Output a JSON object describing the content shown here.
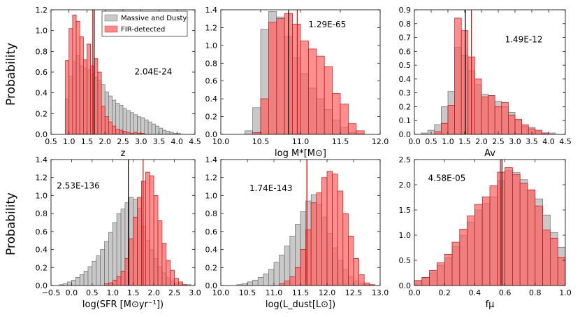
{
  "figure": {
    "ylabel": "Probability",
    "legend": [
      {
        "label": "Massive and Dusty",
        "color": "#c8c8c8"
      },
      {
        "label": "FIR-detected",
        "color": "#ff8a8a"
      }
    ]
  },
  "chart_data": [
    {
      "type": "histogram",
      "xlabel": "z",
      "pvalue": "2.04E-24",
      "xlim": [
        0.5,
        4.5
      ],
      "ylim": [
        0,
        1.2
      ],
      "xticks": [
        "0.5",
        "1.0",
        "1.5",
        "2.0",
        "2.5",
        "3.0",
        "3.5",
        "4.0",
        "4.5"
      ],
      "yticks": [
        "0.0",
        "0.2",
        "0.4",
        "0.6",
        "0.8",
        "1.0",
        "1.2"
      ],
      "bin_start": 0.9,
      "bin_width": 0.1,
      "series": [
        {
          "name": "Massive and Dusty",
          "values": [
            0.34,
            0.56,
            0.7,
            0.76,
            0.66,
            0.64,
            0.62,
            0.58,
            0.55,
            0.52,
            0.48,
            0.41,
            0.37,
            0.33,
            0.3,
            0.28,
            0.25,
            0.23,
            0.21,
            0.19,
            0.17,
            0.16,
            0.14,
            0.12,
            0.1,
            0.08,
            0.06,
            0.04,
            0.03,
            0.02,
            0.01,
            0.01,
            0.0,
            0.0,
            0.0,
            0.0
          ]
        },
        {
          "name": "FIR-detected",
          "values": [
            0.71,
            1.02,
            1.15,
            1.09,
            0.94,
            0.72,
            0.87,
            0.66,
            0.73,
            0.6,
            0.27,
            0.17,
            0.12,
            0.08,
            0.05,
            0.04,
            0.03,
            0.02,
            0.01,
            0.02,
            0.01,
            0.01,
            0.0,
            0.0,
            0.0,
            0.0,
            0.0,
            0.0,
            0.0,
            0.0,
            0.0,
            0.0,
            0.0,
            0.0,
            0.0,
            0.0
          ]
        }
      ],
      "vlines": [
        {
          "series": "Massive and Dusty",
          "x": 1.7
        },
        {
          "series": "FIR-detected",
          "x": 1.66
        }
      ]
    },
    {
      "type": "histogram",
      "xlabel": "log M*[M⊙]",
      "pvalue": "1.29E-65",
      "xlim": [
        10.0,
        12.0
      ],
      "ylim": [
        0,
        1.4
      ],
      "xticks": [
        "10.0",
        "10.5",
        "11.0",
        "11.5",
        "12.0"
      ],
      "yticks": [
        "0.0",
        "0.2",
        "0.4",
        "0.6",
        "0.8",
        "1.0",
        "1.2",
        "1.4"
      ],
      "bin_start": 10.2,
      "bin_width": 0.1,
      "series": [
        {
          "name": "Massive and Dusty",
          "values": [
            0.0,
            0.04,
            0.3,
            1.18,
            1.38,
            1.32,
            1.1,
            0.86,
            0.68,
            0.52,
            0.4,
            0.28,
            0.16,
            0.08,
            0.02,
            0.01,
            0.0,
            0.0
          ]
        },
        {
          "name": "FIR-detected",
          "values": [
            0.0,
            0.0,
            0.02,
            0.4,
            1.26,
            1.3,
            1.36,
            1.24,
            1.05,
            0.96,
            0.88,
            0.76,
            0.46,
            0.34,
            0.12,
            0.04,
            0.0,
            0.0
          ]
        }
      ],
      "vlines": [
        {
          "series": "Massive and Dusty",
          "x": 10.85
        },
        {
          "series": "FIR-detected",
          "x": 10.96
        }
      ]
    },
    {
      "type": "histogram",
      "xlabel": "Av",
      "pvalue": "1.49E-12",
      "xlim": [
        0.0,
        4.5
      ],
      "ylim": [
        0,
        0.9
      ],
      "xticks": [
        "0.0",
        "0.5",
        "1.0",
        "1.5",
        "2.0",
        "2.5",
        "3.0",
        "3.5",
        "4.0",
        "4.5"
      ],
      "yticks": [
        "0.0",
        "0.1",
        "0.2",
        "0.3",
        "0.4",
        "0.5",
        "0.6",
        "0.7",
        "0.8",
        "0.9"
      ],
      "bin_start": 0.0,
      "bin_width": 0.2,
      "series": [
        {
          "name": "Massive and Dusty",
          "values": [
            0.0,
            0.01,
            0.03,
            0.07,
            0.2,
            0.31,
            0.63,
            0.57,
            0.46,
            0.36,
            0.29,
            0.28,
            0.24,
            0.2,
            0.16,
            0.1,
            0.06,
            0.05,
            0.02,
            0.01,
            0.01,
            0.0
          ]
        },
        {
          "name": "FIR-detected",
          "values": [
            0.0,
            0.0,
            0.0,
            0.02,
            0.08,
            0.21,
            0.84,
            0.75,
            0.56,
            0.4,
            0.27,
            0.28,
            0.2,
            0.23,
            0.14,
            0.11,
            0.07,
            0.04,
            0.03,
            0.01,
            0.0,
            0.0
          ]
        }
      ],
      "vlines": [
        {
          "series": "Massive and Dusty",
          "x": 1.52
        },
        {
          "series": "FIR-detected",
          "x": 1.7
        }
      ]
    },
    {
      "type": "histogram",
      "xlabel": "log(SFR [M⊙yr⁻¹])",
      "pvalue": "2.53E-136",
      "xlim": [
        -0.5,
        3.0
      ],
      "ylim": [
        0,
        1.4
      ],
      "xticks": [
        "−0.5",
        "0.0",
        "0.5",
        "1.0",
        "1.5",
        "2.0",
        "2.5",
        "3.0"
      ],
      "yticks": [
        "0.0",
        "0.2",
        "0.4",
        "0.6",
        "0.8",
        "1.0",
        "1.2",
        "1.4"
      ],
      "bin_start": -0.3,
      "bin_width": 0.1,
      "series": [
        {
          "name": "Massive and Dusty",
          "values": [
            0.01,
            0.02,
            0.04,
            0.06,
            0.09,
            0.12,
            0.16,
            0.21,
            0.27,
            0.33,
            0.4,
            0.49,
            0.59,
            0.7,
            0.8,
            0.85,
            0.92,
            0.98,
            0.96,
            0.86,
            0.66,
            0.5,
            0.4,
            0.3,
            0.21,
            0.14,
            0.09,
            0.05,
            0.03,
            0.02,
            0.01,
            0.01,
            0.0
          ]
        },
        {
          "name": "FIR-detected",
          "values": [
            0.0,
            0.0,
            0.0,
            0.0,
            0.0,
            0.0,
            0.0,
            0.0,
            0.0,
            0.0,
            0.0,
            0.02,
            0.03,
            0.06,
            0.1,
            0.16,
            0.3,
            0.52,
            0.76,
            0.98,
            1.16,
            1.26,
            1.22,
            1.0,
            0.72,
            0.47,
            0.28,
            0.17,
            0.08,
            0.04,
            0.01,
            0.0,
            0.0
          ]
        }
      ],
      "vlines": [
        {
          "series": "Massive and Dusty",
          "x": 1.38
        },
        {
          "series": "FIR-detected",
          "x": 1.74
        }
      ]
    },
    {
      "type": "histogram",
      "xlabel": "log(L_dust[L⊙])",
      "pvalue": "1.74E-143",
      "xlim": [
        10.0,
        13.0
      ],
      "ylim": [
        0,
        1.4
      ],
      "xticks": [
        "10.0",
        "10.5",
        "11.0",
        "11.5",
        "12.0",
        "12.5",
        "13.0"
      ],
      "yticks": [
        "0.0",
        "0.2",
        "0.4",
        "0.6",
        "0.8",
        "1.0",
        "1.2",
        "1.4"
      ],
      "bin_start": 10.3,
      "bin_width": 0.1,
      "series": [
        {
          "name": "Massive and Dusty",
          "values": [
            0.01,
            0.02,
            0.04,
            0.06,
            0.09,
            0.13,
            0.18,
            0.26,
            0.34,
            0.44,
            0.55,
            0.68,
            0.82,
            0.94,
            1.01,
            0.9,
            0.76,
            0.58,
            0.42,
            0.28,
            0.18,
            0.1,
            0.05,
            0.03,
            0.01,
            0.0,
            0.0
          ]
        },
        {
          "name": "FIR-detected",
          "values": [
            0.0,
            0.0,
            0.0,
            0.0,
            0.0,
            0.0,
            0.0,
            0.0,
            0.02,
            0.05,
            0.1,
            0.2,
            0.4,
            0.62,
            0.92,
            1.03,
            1.2,
            1.27,
            1.24,
            1.05,
            0.8,
            0.55,
            0.3,
            0.12,
            0.03,
            0.01,
            0.0
          ]
        }
      ],
      "vlines": [
        {
          "series": "Massive and Dusty",
          "x": 11.62
        },
        {
          "series": "FIR-detected",
          "x": 11.62
        }
      ]
    },
    {
      "type": "histogram",
      "xlabel": "fμ",
      "pvalue": "4.58E-05",
      "xlim": [
        0.0,
        1.0
      ],
      "ylim": [
        0,
        2.5
      ],
      "xticks": [
        "0.0",
        "0.2",
        "0.4",
        "0.6",
        "0.8",
        "1.0"
      ],
      "yticks": [
        "0.0",
        "0.5",
        "1.0",
        "1.5",
        "2.0",
        "2.5"
      ],
      "bin_start": 0.0,
      "bin_width": 0.05,
      "series": [
        {
          "name": "Massive and Dusty",
          "values": [
            0.1,
            0.16,
            0.25,
            0.4,
            0.55,
            0.78,
            1.0,
            1.26,
            1.5,
            1.63,
            1.76,
            2.08,
            2.28,
            2.24,
            2.1,
            1.88,
            1.72,
            1.4,
            1.05,
            0.76
          ]
        },
        {
          "name": "FIR-detected",
          "values": [
            0.1,
            0.16,
            0.3,
            0.45,
            0.62,
            0.86,
            1.12,
            1.38,
            1.61,
            1.76,
            1.98,
            2.25,
            2.34,
            2.2,
            2.03,
            1.9,
            1.58,
            1.1,
            0.94,
            0.56
          ]
        }
      ],
      "vlines": [
        {
          "series": "Massive and Dusty",
          "x": 0.58
        },
        {
          "series": "FIR-detected",
          "x": 0.57
        }
      ]
    }
  ]
}
